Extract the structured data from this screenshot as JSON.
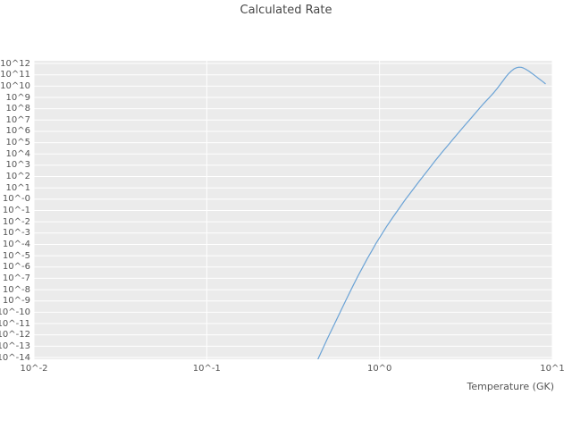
{
  "title": "Calculated Rate",
  "colors": {
    "page_bg": "#ffffff",
    "plot_bg": "#ebebeb",
    "grid": "#ffffff",
    "line": "#6ba3d6",
    "tick_text": "#545454",
    "title_text": "#474747"
  },
  "chart_data": {
    "type": "line",
    "title": "Calculated Rate",
    "xlabel": "Temperature (GK)",
    "ylabel": "",
    "x_scale": "log",
    "y_scale": "log",
    "grid": true,
    "legend": "none",
    "x_range_exp": [
      -2,
      1
    ],
    "y_range_exp": [
      -14.16,
      12.24
    ],
    "x_ticks": [
      {
        "label": "10^-2",
        "exp": -2
      },
      {
        "label": "10^-1",
        "exp": -1
      },
      {
        "label": "10^0",
        "exp": 0
      },
      {
        "label": "10^1",
        "exp": 1
      }
    ],
    "y_ticks": [
      {
        "label": "10^12",
        "exp": 12
      },
      {
        "label": "10^11",
        "exp": 11
      },
      {
        "label": "10^10",
        "exp": 10
      },
      {
        "label": "10^9",
        "exp": 9
      },
      {
        "label": "10^8",
        "exp": 8
      },
      {
        "label": "10^7",
        "exp": 7
      },
      {
        "label": "10^6",
        "exp": 6
      },
      {
        "label": "10^5",
        "exp": 5
      },
      {
        "label": "10^4",
        "exp": 4
      },
      {
        "label": "10^3",
        "exp": 3
      },
      {
        "label": "10^2",
        "exp": 2
      },
      {
        "label": "10^1",
        "exp": 1
      },
      {
        "label": "10^-0",
        "exp": 0
      },
      {
        "label": "10^-1",
        "exp": -1
      },
      {
        "label": "10^-2",
        "exp": -2
      },
      {
        "label": "10^-3",
        "exp": -3
      },
      {
        "label": "10^-4",
        "exp": -4
      },
      {
        "label": "10^-5",
        "exp": -5
      },
      {
        "label": "10^-6",
        "exp": -6
      },
      {
        "label": "10^-7",
        "exp": -7
      },
      {
        "label": "10^-8",
        "exp": -8
      },
      {
        "label": "10^-9",
        "exp": -9
      },
      {
        "label": "10^-10",
        "exp": -10
      },
      {
        "label": "10^-11",
        "exp": -11
      },
      {
        "label": "10^-12",
        "exp": -12
      },
      {
        "label": "10^-13",
        "exp": -13
      },
      {
        "label": "10^-14",
        "exp": -14
      }
    ],
    "series": [
      {
        "name": "Calculated Rate",
        "color": "#6ba3d6",
        "points_T_GK_vs_log10_rate": [
          [
            0.44,
            -14.16
          ],
          [
            0.46,
            -13.5
          ],
          [
            0.48,
            -12.9
          ],
          [
            0.5,
            -12.3
          ],
          [
            0.55,
            -11.0
          ],
          [
            0.6,
            -9.8
          ],
          [
            0.65,
            -8.7
          ],
          [
            0.7,
            -7.7
          ],
          [
            0.75,
            -6.8
          ],
          [
            0.8,
            -6.0
          ],
          [
            0.85,
            -5.25
          ],
          [
            0.9,
            -4.6
          ],
          [
            0.95,
            -3.95
          ],
          [
            1.0,
            -3.4
          ],
          [
            1.1,
            -2.4
          ],
          [
            1.2,
            -1.55
          ],
          [
            1.3,
            -0.8
          ],
          [
            1.4,
            -0.1
          ],
          [
            1.5,
            0.5
          ],
          [
            1.7,
            1.6
          ],
          [
            1.9,
            2.55
          ],
          [
            2.1,
            3.4
          ],
          [
            2.3,
            4.15
          ],
          [
            2.5,
            4.8
          ],
          [
            2.8,
            5.7
          ],
          [
            3.1,
            6.5
          ],
          [
            3.4,
            7.2
          ],
          [
            3.7,
            7.85
          ],
          [
            4.0,
            8.45
          ],
          [
            4.3,
            8.95
          ],
          [
            4.6,
            9.45
          ],
          [
            4.8,
            9.8
          ],
          [
            5.0,
            10.15
          ],
          [
            5.2,
            10.5
          ],
          [
            5.4,
            10.85
          ],
          [
            5.6,
            11.12
          ],
          [
            5.8,
            11.35
          ],
          [
            6.0,
            11.52
          ],
          [
            6.2,
            11.62
          ],
          [
            6.4,
            11.67
          ],
          [
            6.6,
            11.66
          ],
          [
            6.8,
            11.6
          ],
          [
            7.0,
            11.5
          ],
          [
            7.3,
            11.33
          ],
          [
            7.6,
            11.13
          ],
          [
            8.0,
            10.88
          ],
          [
            8.4,
            10.63
          ],
          [
            8.8,
            10.4
          ],
          [
            9.1,
            10.22
          ]
        ]
      }
    ]
  }
}
